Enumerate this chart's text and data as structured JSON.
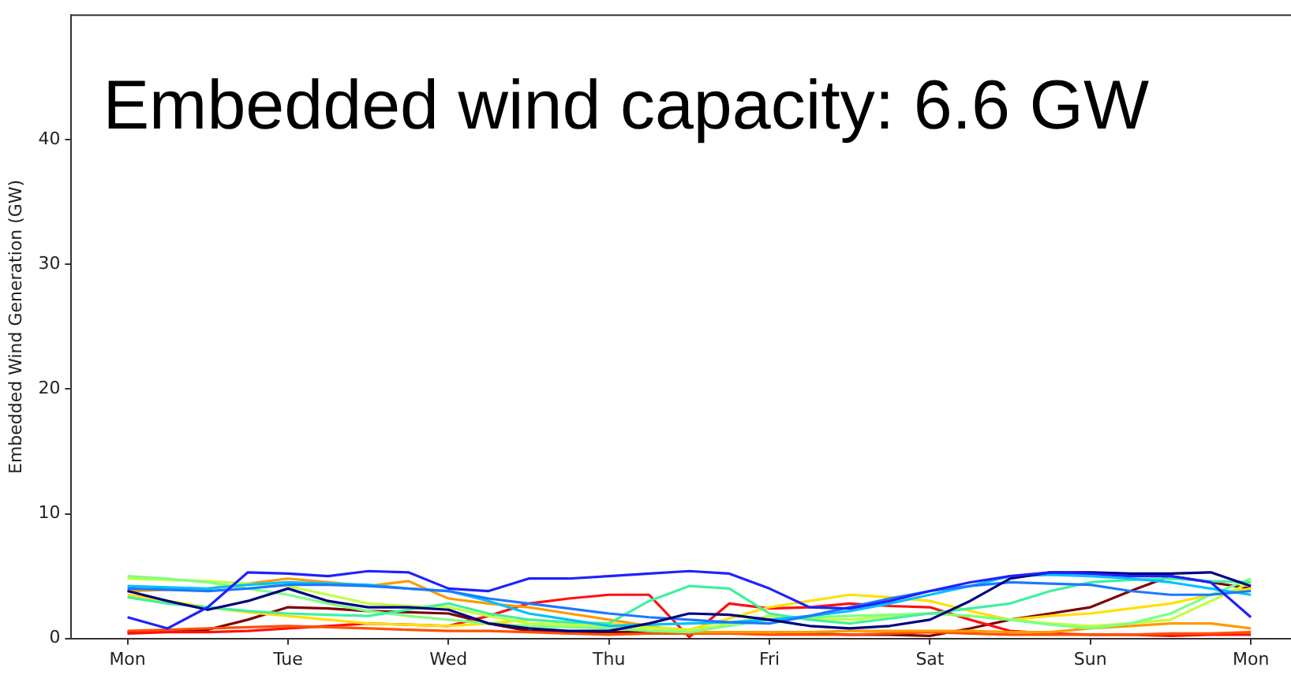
{
  "chart_data": {
    "type": "line",
    "ylabel": "Embedded Wind Generation (GW)",
    "annotations": [
      "Embedded wind capacity: 6.6 GW"
    ],
    "categories": [
      "Mon",
      null,
      null,
      null,
      "Tue",
      null,
      null,
      null,
      "Wed",
      null,
      null,
      null,
      "Thu",
      null,
      null,
      null,
      "Fri",
      null,
      null,
      null,
      "Sat",
      null,
      null,
      null,
      "Sun",
      null,
      null,
      null,
      "Mon"
    ],
    "series": [
      {
        "color": "#2020ff",
        "values": [
          1.7,
          0.8,
          2.5,
          5.3,
          5.2,
          5.0,
          5.4,
          5.3,
          4.0,
          3.8,
          4.8,
          4.8,
          5.0,
          5.2,
          5.4,
          5.2,
          4.0,
          2.5,
          2.4,
          3.0,
          3.8,
          4.5,
          5.0,
          5.3,
          5.2,
          5.0,
          5.0,
          4.5,
          1.7
        ]
      },
      {
        "color": "#000080",
        "values": [
          3.8,
          3.0,
          2.3,
          3.0,
          4.0,
          3.0,
          2.5,
          2.5,
          2.3,
          1.2,
          0.8,
          0.6,
          0.6,
          1.2,
          2.0,
          1.9,
          1.5,
          1.0,
          0.8,
          1.0,
          1.5,
          3.0,
          4.8,
          5.3,
          5.3,
          5.2,
          5.2,
          5.3,
          4.2
        ]
      },
      {
        "color": "#1e78ff",
        "values": [
          4.0,
          3.9,
          3.8,
          4.0,
          4.3,
          4.3,
          4.2,
          4.0,
          3.8,
          3.2,
          2.8,
          2.4,
          2.0,
          1.7,
          1.5,
          1.3,
          1.2,
          1.8,
          2.5,
          3.2,
          3.8,
          4.2,
          4.5,
          4.4,
          4.3,
          3.8,
          3.5,
          3.5,
          3.8
        ]
      },
      {
        "color": "#00c0ff",
        "values": [
          4.2,
          4.1,
          4.0,
          4.3,
          4.5,
          4.4,
          4.3,
          4.0,
          3.8,
          3.0,
          2.0,
          1.5,
          1.0,
          1.1,
          1.2,
          1.3,
          1.5,
          1.8,
          2.2,
          2.8,
          3.5,
          4.2,
          5.0,
          5.1,
          5.0,
          4.8,
          4.5,
          4.0,
          3.5
        ]
      },
      {
        "color": "#40f0a0",
        "values": [
          3.3,
          2.8,
          2.5,
          2.2,
          2.0,
          1.9,
          1.8,
          2.3,
          2.8,
          2.0,
          1.5,
          1.3,
          1.2,
          3.0,
          4.2,
          4.0,
          2.0,
          1.5,
          1.2,
          1.6,
          2.0,
          2.4,
          2.8,
          3.8,
          4.5,
          4.7,
          4.8,
          4.6,
          4.5
        ]
      },
      {
        "color": "#80ff80",
        "values": [
          5.0,
          4.8,
          4.5,
          4.0,
          3.5,
          2.8,
          2.2,
          1.8,
          1.5,
          1.2,
          1.0,
          0.9,
          0.8,
          0.6,
          0.5,
          1.0,
          1.5,
          1.7,
          1.8,
          1.9,
          2.0,
          1.8,
          1.5,
          1.1,
          0.8,
          1.2,
          2.0,
          3.5,
          4.8
        ]
      },
      {
        "color": "#c0ff40",
        "values": [
          4.8,
          4.7,
          4.6,
          4.4,
          4.2,
          3.5,
          2.8,
          2.6,
          2.5,
          1.8,
          1.2,
          1.1,
          1.0,
          0.8,
          0.6,
          1.2,
          1.8,
          1.6,
          1.5,
          1.8,
          2.0,
          1.8,
          1.5,
          1.2,
          1.0,
          1.2,
          1.5,
          3.0,
          4.5
        ]
      },
      {
        "color": "#ffe000",
        "values": [
          3.5,
          3.0,
          2.5,
          2.1,
          1.8,
          1.5,
          1.2,
          1.1,
          1.0,
          1.2,
          1.5,
          1.3,
          1.2,
          0.9,
          0.7,
          1.6,
          2.5,
          3.0,
          3.5,
          3.3,
          3.0,
          2.2,
          1.5,
          1.8,
          2.0,
          2.4,
          2.8,
          3.5,
          4.0
        ]
      },
      {
        "color": "#ff9900",
        "values": [
          3.8,
          3.9,
          4.0,
          4.4,
          4.8,
          4.5,
          4.2,
          4.6,
          3.2,
          2.8,
          2.5,
          2.0,
          1.5,
          1.0,
          0.5,
          0.5,
          0.5,
          0.5,
          0.6,
          0.6,
          0.6,
          0.6,
          0.5,
          0.5,
          0.8,
          1.0,
          1.2,
          1.2,
          0.8
        ]
      },
      {
        "color": "#ff5000",
        "values": [
          0.6,
          0.7,
          0.8,
          0.9,
          1.0,
          0.9,
          0.8,
          0.7,
          0.6,
          0.6,
          0.5,
          0.4,
          0.3,
          0.4,
          0.4,
          0.4,
          0.3,
          0.3,
          0.3,
          0.4,
          0.5,
          0.4,
          0.3,
          0.3,
          0.3,
          0.3,
          0.4,
          0.4,
          0.5
        ]
      },
      {
        "color": "#ff1010",
        "values": [
          0.4,
          0.5,
          0.5,
          0.6,
          0.8,
          1.0,
          1.2,
          1.1,
          1.0,
          1.8,
          2.8,
          3.2,
          3.5,
          3.5,
          0.1,
          2.8,
          2.4,
          2.5,
          2.8,
          2.6,
          2.5,
          1.5,
          0.6,
          0.4,
          0.3,
          0.3,
          0.2,
          0.3,
          0.3
        ]
      },
      {
        "color": "#800000",
        "values": [
          0.5,
          0.6,
          0.7,
          1.5,
          2.5,
          2.4,
          2.2,
          2.1,
          2.0,
          1.2,
          0.6,
          0.5,
          0.5,
          0.5,
          0.5,
          0.5,
          0.5,
          0.4,
          0.3,
          0.3,
          0.2,
          0.8,
          1.5,
          2.0,
          2.5,
          3.8,
          5.0,
          4.5,
          4.0
        ]
      }
    ],
    "ylim": [
      0,
      50
    ],
    "yticks": [
      0,
      10,
      20,
      30,
      40
    ],
    "grid": false,
    "legend": false,
    "marker": "none",
    "line_style": "solid"
  }
}
